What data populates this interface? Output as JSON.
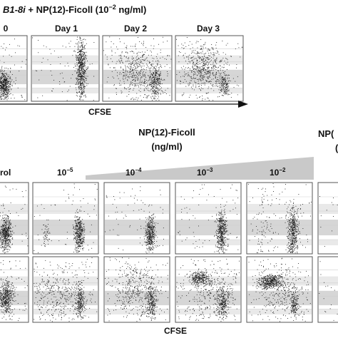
{
  "panel_a": {
    "title_gene": "B1-8i",
    "title_rest": " + NP(12)-Ficoll (10",
    "title_exp": "−2",
    "title_unit": " ng/ml)",
    "day_labels": [
      "0",
      "Day 1",
      "Day 2",
      "Day 3"
    ],
    "x_axis_label": "CFSE"
  },
  "panel_b": {
    "title_line1": "NP(12)-Ficoll",
    "title_line2": "(ng/ml)",
    "control_label": "rol",
    "dose_bases": [
      "10",
      "10",
      "10",
      "10"
    ],
    "dose_exponents": [
      "−5",
      "−4",
      "−3",
      "−2"
    ],
    "right_edge_label": "NP(",
    "right_edge_label2": "(",
    "x_axis_label": "CFSE"
  }
}
